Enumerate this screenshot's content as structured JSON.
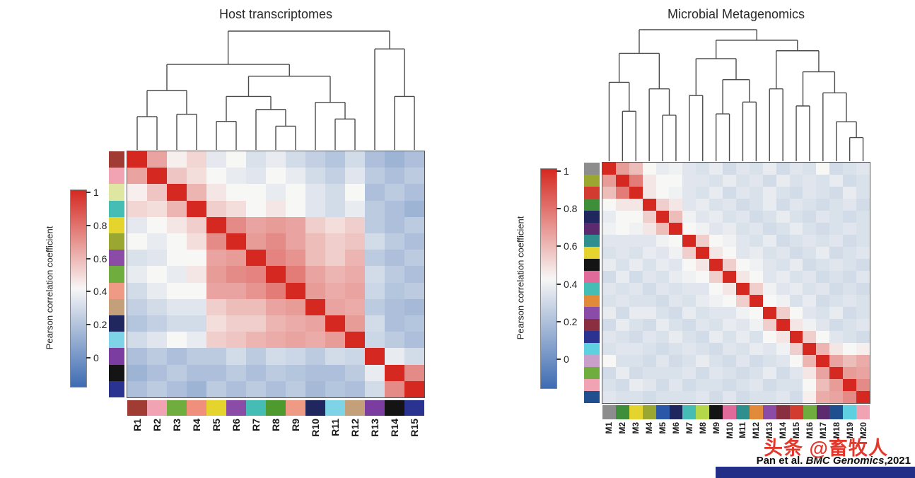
{
  "citation": {
    "prefix": "Pan et al. ",
    "journal": "BMC Genomics",
    "suffix": ",2021"
  },
  "watermark": {
    "text": "头条 @畜牧人",
    "color": "#e2382c"
  },
  "chart_data": [
    {
      "type": "heatmap",
      "title": "Host transcriptomes",
      "labels": [
        "R1",
        "R2",
        "R3",
        "R4",
        "R5",
        "R6",
        "R7",
        "R8",
        "R9",
        "R10",
        "R11",
        "R12",
        "R13",
        "R14",
        "R15"
      ],
      "scale": {
        "label": "Pearson correlation coefficient",
        "min": 0,
        "max": 1,
        "ticks": [
          "1",
          "0.8",
          "0.6",
          "0.4",
          "0.2",
          "0"
        ],
        "colors": {
          "low": "#3e6cb2",
          "mid": "#f7f7f6",
          "high": "#d52821"
        }
      },
      "row_colors": [
        "#a03c34",
        "#f2a3b3",
        "#dfe6a2",
        "#46bdb4",
        "#e5d42e",
        "#9aa832",
        "#8a4ca6",
        "#6fae3e",
        "#ee9a84",
        "#c4a07a",
        "#20275f",
        "#7ed3e6",
        "#7b3da0",
        "#141414",
        "#2a3390"
      ],
      "col_colors": [
        "#a03c34",
        "#f2a3b3",
        "#6fae3e",
        "#ef8f7c",
        "#e5d42e",
        "#8a4ca6",
        "#46bdb4",
        "#4f9a2e",
        "#ee9a84",
        "#20275f",
        "#7ed3e6",
        "#c4a07a",
        "#7b3da0",
        "#141414",
        "#2a3390"
      ],
      "matrix_upper": [
        [
          1,
          0.7,
          0.52,
          0.58,
          0.45,
          0.5,
          0.42,
          0.46,
          0.4,
          0.36,
          0.32,
          0.4,
          0.3,
          0.26,
          0.3
        ],
        [
          1,
          0.62,
          0.56,
          0.5,
          0.46,
          0.44,
          0.5,
          0.46,
          0.4,
          0.36,
          0.44,
          0.34,
          0.3,
          0.34
        ],
        [
          1,
          0.66,
          0.54,
          0.5,
          0.5,
          0.46,
          0.5,
          0.44,
          0.4,
          0.5,
          0.3,
          0.34,
          0.3
        ],
        [
          1,
          0.6,
          0.56,
          0.5,
          0.54,
          0.5,
          0.44,
          0.4,
          0.46,
          0.34,
          0.3,
          0.26
        ],
        [
          1,
          0.76,
          0.7,
          0.72,
          0.7,
          0.6,
          0.56,
          0.6,
          0.34,
          0.3,
          0.34
        ],
        [
          1,
          0.72,
          0.76,
          0.7,
          0.64,
          0.6,
          0.62,
          0.4,
          0.34,
          0.3
        ],
        [
          1,
          0.78,
          0.74,
          0.64,
          0.6,
          0.66,
          0.34,
          0.3,
          0.34
        ],
        [
          1,
          0.8,
          0.7,
          0.66,
          0.68,
          0.4,
          0.34,
          0.3
        ],
        [
          1,
          0.72,
          0.68,
          0.7,
          0.38,
          0.32,
          0.34
        ],
        [
          1,
          0.7,
          0.68,
          0.34,
          0.3,
          0.28
        ],
        [
          1,
          0.72,
          0.4,
          0.3,
          0.32
        ],
        [
          1,
          0.38,
          0.34,
          0.3
        ],
        [
          1,
          0.46,
          0.4
        ],
        [
          1,
          0.76
        ],
        [
          1
        ]
      ],
      "dendrogram": {
        "h": 1,
        "c": [
          {
            "h": 0.72,
            "c": [
              {
                "h": 0.5,
                "c": [
                  {
                    "h": 0.28,
                    "c": [
                      0,
                      1
                    ]
                  },
                  {
                    "h": 0.3,
                    "c": [
                      2,
                      3
                    ]
                  }
                ]
              },
              {
                "h": 0.62,
                "c": [
                  {
                    "h": 0.45,
                    "c": [
                      {
                        "h": 0.24,
                        "c": [
                          4,
                          5
                        ]
                      },
                      {
                        "h": 0.34,
                        "c": [
                          6,
                          {
                            "h": 0.2,
                            "c": [
                              7,
                              8
                            ]
                          }
                        ]
                      }
                    ]
                  },
                  {
                    "h": 0.4,
                    "c": [
                      9,
                      {
                        "h": 0.26,
                        "c": [
                          10,
                          11
                        ]
                      }
                    ]
                  }
                ]
              }
            ]
          },
          {
            "h": 0.85,
            "c": [
              12,
              {
                "h": 0.45,
                "c": [
                  13,
                  14
                ]
              }
            ]
          }
        ]
      }
    },
    {
      "type": "heatmap",
      "title": "Microbial Metagenomics",
      "labels": [
        "M1",
        "M2",
        "M3",
        "M4",
        "M5",
        "M6",
        "M7",
        "M8",
        "M9",
        "M10",
        "M11",
        "M12",
        "M13",
        "M14",
        "M15",
        "M16",
        "M17",
        "M18",
        "M19",
        "M20"
      ],
      "scale": {
        "label": "Pearson correlation coefficient",
        "min": 0,
        "max": 1,
        "ticks": [
          "1",
          "0.8",
          "0.6",
          "0.4",
          "0.2",
          "0"
        ],
        "colors": {
          "low": "#3e6cb2",
          "mid": "#f7f7f6",
          "high": "#d52821"
        }
      },
      "row_colors": [
        "#8d8d8d",
        "#9aa832",
        "#d23b2f",
        "#3f8f3a",
        "#20275f",
        "#5c2a6e",
        "#2f8f8f",
        "#e5d42e",
        "#141414",
        "#e06a9a",
        "#46bdb4",
        "#e08a3a",
        "#8a4ca6",
        "#8a2f3f",
        "#2a3390",
        "#5fd0e0",
        "#c9a0c9",
        "#6fae3e",
        "#f2a3b3",
        "#204f8f"
      ],
      "col_colors": [
        "#8d8d8d",
        "#3f8f3a",
        "#e5d42e",
        "#9aa832",
        "#2a57a8",
        "#20275f",
        "#46bdb4",
        "#b5d84a",
        "#141414",
        "#e06a9a",
        "#2f8f8f",
        "#e08a3a",
        "#8a4ca6",
        "#8a2f3f",
        "#d23b2f",
        "#6fae3e",
        "#5c2a6e",
        "#204f8f",
        "#5fd0e0",
        "#f2a3b3"
      ],
      "matrix_upper": [
        [
          1,
          0.72,
          0.64,
          0.5,
          0.46,
          0.48,
          0.44,
          0.42,
          0.46,
          0.4,
          0.44,
          0.42,
          0.46,
          0.4,
          0.44,
          0.42,
          0.5,
          0.4,
          0.42,
          0.44
        ],
        [
          1,
          0.8,
          0.54,
          0.5,
          0.5,
          0.44,
          0.44,
          0.42,
          0.46,
          0.42,
          0.44,
          0.4,
          0.46,
          0.42,
          0.44,
          0.42,
          0.46,
          0.4,
          0.42
        ],
        [
          1,
          0.54,
          0.5,
          0.48,
          0.44,
          0.42,
          0.46,
          0.4,
          0.44,
          0.42,
          0.46,
          0.42,
          0.4,
          0.44,
          0.42,
          0.4,
          0.46,
          0.42
        ],
        [
          1,
          0.6,
          0.54,
          0.44,
          0.46,
          0.42,
          0.44,
          0.4,
          0.42,
          0.46,
          0.4,
          0.44,
          0.42,
          0.4,
          0.42,
          0.44,
          0.4
        ],
        [
          1,
          0.64,
          0.48,
          0.44,
          0.46,
          0.42,
          0.44,
          0.4,
          0.42,
          0.46,
          0.42,
          0.4,
          0.44,
          0.42,
          0.4,
          0.42
        ],
        [
          1,
          0.5,
          0.48,
          0.44,
          0.46,
          0.42,
          0.44,
          0.4,
          0.42,
          0.46,
          0.42,
          0.4,
          0.42,
          0.44,
          0.42
        ],
        [
          1,
          0.6,
          0.5,
          0.48,
          0.44,
          0.42,
          0.46,
          0.4,
          0.42,
          0.44,
          0.42,
          0.44,
          0.4,
          0.42
        ],
        [
          1,
          0.54,
          0.5,
          0.44,
          0.46,
          0.42,
          0.44,
          0.4,
          0.42,
          0.46,
          0.4,
          0.42,
          0.44
        ],
        [
          1,
          0.6,
          0.5,
          0.48,
          0.44,
          0.42,
          0.46,
          0.4,
          0.42,
          0.44,
          0.42,
          0.4
        ],
        [
          1,
          0.54,
          0.5,
          0.44,
          0.46,
          0.42,
          0.44,
          0.4,
          0.42,
          0.4,
          0.44
        ],
        [
          1,
          0.6,
          0.48,
          0.44,
          0.46,
          0.42,
          0.44,
          0.4,
          0.42,
          0.4
        ],
        [
          1,
          0.5,
          0.48,
          0.42,
          0.46,
          0.4,
          0.42,
          0.44,
          0.42
        ],
        [
          1,
          0.6,
          0.5,
          0.44,
          0.42,
          0.46,
          0.4,
          0.42
        ],
        [
          1,
          0.54,
          0.48,
          0.44,
          0.4,
          0.42,
          0.44
        ],
        [
          1,
          0.6,
          0.5,
          0.44,
          0.42,
          0.4
        ],
        [
          1,
          0.66,
          0.54,
          0.5,
          0.52
        ],
        [
          1,
          0.7,
          0.64,
          0.68
        ],
        [
          1,
          0.72,
          0.7
        ],
        [
          1,
          0.76
        ],
        [
          1
        ]
      ],
      "dendrogram": {
        "h": 1,
        "c": [
          {
            "h": 0.82,
            "c": [
              {
                "h": 0.6,
                "c": [
                  0,
                  {
                    "h": 0.38,
                    "c": [
                      1,
                      2
                    ]
                  }
                ]
              },
              {
                "h": 0.55,
                "c": [
                  3,
                  {
                    "h": 0.35,
                    "c": [
                      4,
                      5
                    ]
                  }
                ]
              }
            ]
          },
          {
            "h": 0.92,
            "c": [
              {
                "h": 0.78,
                "c": [
                  {
                    "h": 0.5,
                    "c": [
                      6,
                      7
                    ]
                  },
                  {
                    "h": 0.62,
                    "c": [
                      {
                        "h": 0.36,
                        "c": [
                          8,
                          9
                        ]
                      },
                      {
                        "h": 0.45,
                        "c": [
                          10,
                          11
                        ]
                      }
                    ]
                  }
                ]
              },
              {
                "h": 0.84,
                "c": [
                  {
                    "h": 0.55,
                    "c": [
                      12,
                      13
                    ]
                  },
                  {
                    "h": 0.68,
                    "c": [
                      {
                        "h": 0.42,
                        "c": [
                          14,
                          15
                        ]
                      },
                      {
                        "h": 0.52,
                        "c": [
                          16,
                          {
                            "h": 0.3,
                            "c": [
                              17,
                              {
                                "h": 0.18,
                                "c": [
                                  18,
                                  19
                                ]
                              }
                            ]
                          }
                        ]
                      }
                    ]
                  }
                ]
              }
            ]
          }
        ]
      }
    }
  ]
}
